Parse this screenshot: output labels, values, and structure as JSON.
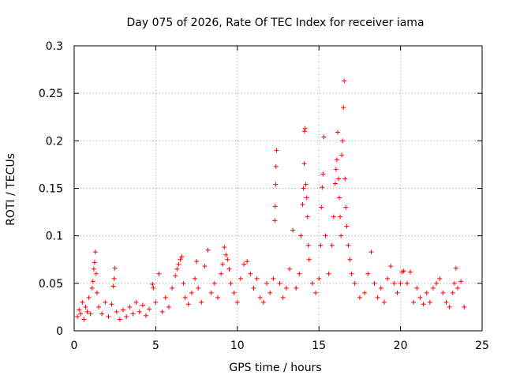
{
  "chart_data": {
    "type": "scatter",
    "title": "Day 075 of 2026, Rate Of TEC Index for receiver iama",
    "xlabel": "GPS time / hours",
    "ylabel": "ROTI / TECUs",
    "xlim": [
      0,
      25
    ],
    "ylim": [
      0,
      0.3
    ],
    "xticks": [
      0,
      5,
      10,
      15,
      20,
      25
    ],
    "xtick_labels": [
      "0",
      "5",
      "10",
      "15",
      "20",
      "25"
    ],
    "yticks": [
      0,
      0.05,
      0.1,
      0.15,
      0.2,
      0.25,
      0.3
    ],
    "ytick_labels": [
      "0",
      "0.05",
      "0.1",
      "0.15",
      "0.2",
      "0.25",
      "0.3"
    ],
    "grid": true,
    "marker": "plus",
    "series": [
      {
        "name": "ROTI",
        "color": "#ff0000",
        "points": [
          [
            0.2,
            0.015
          ],
          [
            0.3,
            0.022
          ],
          [
            0.4,
            0.018
          ],
          [
            0.5,
            0.03
          ],
          [
            0.6,
            0.012
          ],
          [
            0.7,
            0.025
          ],
          [
            0.8,
            0.02
          ],
          [
            0.9,
            0.035
          ],
          [
            1.0,
            0.018
          ],
          [
            1.1,
            0.045
          ],
          [
            1.15,
            0.052
          ],
          [
            1.2,
            0.065
          ],
          [
            1.25,
            0.072
          ],
          [
            1.3,
            0.083
          ],
          [
            1.35,
            0.06
          ],
          [
            1.4,
            0.04
          ],
          [
            1.5,
            0.025
          ],
          [
            1.7,
            0.018
          ],
          [
            1.9,
            0.03
          ],
          [
            2.1,
            0.015
          ],
          [
            2.3,
            0.028
          ],
          [
            2.4,
            0.047
          ],
          [
            2.45,
            0.055
          ],
          [
            2.5,
            0.066
          ],
          [
            2.6,
            0.02
          ],
          [
            2.8,
            0.012
          ],
          [
            3.0,
            0.022
          ],
          [
            3.2,
            0.015
          ],
          [
            3.4,
            0.025
          ],
          [
            3.6,
            0.018
          ],
          [
            3.8,
            0.03
          ],
          [
            4.0,
            0.02
          ],
          [
            4.2,
            0.027
          ],
          [
            4.4,
            0.016
          ],
          [
            4.6,
            0.023
          ],
          [
            4.8,
            0.049
          ],
          [
            4.85,
            0.045
          ],
          [
            5.0,
            0.03
          ],
          [
            5.2,
            0.06
          ],
          [
            5.4,
            0.02
          ],
          [
            5.6,
            0.035
          ],
          [
            5.8,
            0.025
          ],
          [
            6.0,
            0.045
          ],
          [
            6.2,
            0.058
          ],
          [
            6.3,
            0.065
          ],
          [
            6.4,
            0.07
          ],
          [
            6.5,
            0.075
          ],
          [
            6.6,
            0.078
          ],
          [
            6.7,
            0.05
          ],
          [
            6.8,
            0.035
          ],
          [
            7.0,
            0.028
          ],
          [
            7.2,
            0.04
          ],
          [
            7.4,
            0.055
          ],
          [
            7.5,
            0.073
          ],
          [
            7.6,
            0.045
          ],
          [
            7.8,
            0.03
          ],
          [
            8.0,
            0.068
          ],
          [
            8.2,
            0.085
          ],
          [
            8.4,
            0.04
          ],
          [
            8.6,
            0.05
          ],
          [
            8.8,
            0.035
          ],
          [
            9.0,
            0.06
          ],
          [
            9.1,
            0.07
          ],
          [
            9.2,
            0.088
          ],
          [
            9.3,
            0.08
          ],
          [
            9.4,
            0.075
          ],
          [
            9.5,
            0.065
          ],
          [
            9.6,
            0.05
          ],
          [
            9.8,
            0.04
          ],
          [
            10.0,
            0.03
          ],
          [
            10.2,
            0.055
          ],
          [
            10.4,
            0.07
          ],
          [
            10.6,
            0.073
          ],
          [
            10.8,
            0.06
          ],
          [
            11.0,
            0.045
          ],
          [
            11.2,
            0.055
          ],
          [
            11.4,
            0.035
          ],
          [
            11.6,
            0.03
          ],
          [
            11.8,
            0.05
          ],
          [
            12.0,
            0.04
          ],
          [
            12.2,
            0.055
          ],
          [
            12.3,
            0.116
          ],
          [
            12.32,
            0.131
          ],
          [
            12.35,
            0.154
          ],
          [
            12.37,
            0.173
          ],
          [
            12.4,
            0.19
          ],
          [
            12.6,
            0.05
          ],
          [
            12.8,
            0.035
          ],
          [
            13.0,
            0.045
          ],
          [
            13.2,
            0.065
          ],
          [
            13.4,
            0.106
          ],
          [
            13.6,
            0.045
          ],
          [
            13.8,
            0.06
          ],
          [
            13.9,
            0.1
          ],
          [
            14.0,
            0.133
          ],
          [
            14.05,
            0.15
          ],
          [
            14.1,
            0.176
          ],
          [
            14.12,
            0.21
          ],
          [
            14.15,
            0.213
          ],
          [
            14.2,
            0.154
          ],
          [
            14.25,
            0.14
          ],
          [
            14.3,
            0.12
          ],
          [
            14.35,
            0.09
          ],
          [
            14.4,
            0.075
          ],
          [
            14.6,
            0.05
          ],
          [
            14.8,
            0.04
          ],
          [
            15.0,
            0.055
          ],
          [
            15.1,
            0.09
          ],
          [
            15.15,
            0.13
          ],
          [
            15.2,
            0.151
          ],
          [
            15.25,
            0.165
          ],
          [
            15.3,
            0.204
          ],
          [
            15.4,
            0.1
          ],
          [
            15.6,
            0.06
          ],
          [
            15.8,
            0.09
          ],
          [
            15.9,
            0.12
          ],
          [
            16.0,
            0.155
          ],
          [
            16.05,
            0.17
          ],
          [
            16.1,
            0.18
          ],
          [
            16.15,
            0.209
          ],
          [
            16.2,
            0.16
          ],
          [
            16.25,
            0.14
          ],
          [
            16.3,
            0.12
          ],
          [
            16.35,
            0.1
          ],
          [
            16.4,
            0.185
          ],
          [
            16.45,
            0.2
          ],
          [
            16.5,
            0.235
          ],
          [
            16.55,
            0.263
          ],
          [
            16.6,
            0.16
          ],
          [
            16.65,
            0.13
          ],
          [
            16.7,
            0.11
          ],
          [
            16.8,
            0.09
          ],
          [
            16.9,
            0.075
          ],
          [
            17.0,
            0.06
          ],
          [
            17.2,
            0.05
          ],
          [
            17.5,
            0.035
          ],
          [
            17.8,
            0.04
          ],
          [
            18.0,
            0.06
          ],
          [
            18.2,
            0.083
          ],
          [
            18.4,
            0.05
          ],
          [
            18.6,
            0.035
          ],
          [
            18.8,
            0.045
          ],
          [
            19.0,
            0.03
          ],
          [
            19.2,
            0.055
          ],
          [
            19.4,
            0.068
          ],
          [
            19.6,
            0.05
          ],
          [
            19.8,
            0.04
          ],
          [
            20.0,
            0.05
          ],
          [
            20.1,
            0.062
          ],
          [
            20.2,
            0.063
          ],
          [
            20.4,
            0.05
          ],
          [
            20.6,
            0.062
          ],
          [
            20.8,
            0.03
          ],
          [
            21.0,
            0.045
          ],
          [
            21.2,
            0.035
          ],
          [
            21.4,
            0.028
          ],
          [
            21.6,
            0.04
          ],
          [
            21.8,
            0.03
          ],
          [
            22.0,
            0.045
          ],
          [
            22.2,
            0.05
          ],
          [
            22.4,
            0.055
          ],
          [
            22.6,
            0.04
          ],
          [
            22.8,
            0.03
          ],
          [
            23.0,
            0.025
          ],
          [
            23.2,
            0.04
          ],
          [
            23.3,
            0.05
          ],
          [
            23.4,
            0.066
          ],
          [
            23.5,
            0.045
          ],
          [
            23.7,
            0.052
          ],
          [
            23.9,
            0.025
          ]
        ]
      }
    ]
  }
}
